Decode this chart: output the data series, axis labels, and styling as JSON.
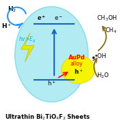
{
  "bg_color": "#ffffff",
  "ellipse_color": "#b2ebf2",
  "ellipse_edge": "#80deea",
  "nanoparticle_color": "#f5f500",
  "nanoparticle_edge": "#e0e000",
  "arrow_blue_color": "#2196f3",
  "arrow_dark_yellow": "#8b6914",
  "line_color": "#1565c0",
  "h2_text": "H$_2$",
  "hplus_text": "H$^+$",
  "hv_text": "hv>E$_g$",
  "eminus1": "e$^-$",
  "eplus_text": "h$^+$",
  "aupd_text": "AuPd",
  "alloy_text": "alloy",
  "ch3oh_text": "CH$_3$OH",
  "ch4_text": "CH$_4$",
  "oh_text": "•OH",
  "h2o_text": "H$_2$O",
  "title_text": "Ultrathin Bi",
  "title_sub1": "2",
  "title_mid": "TiO",
  "title_sub2": "4",
  "title_end": "F",
  "title_sub3": "2",
  "title_tail": " Sheets",
  "bottom_label": "Ultrathin Bi$_2$TiO$_4$F$_2$ Sheets"
}
